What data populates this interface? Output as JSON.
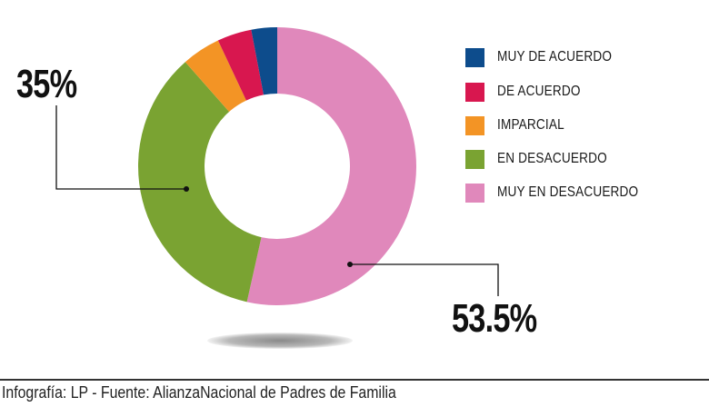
{
  "chart_data": {
    "type": "pie",
    "donut": true,
    "categories": [
      "MUY DE ACUERDO",
      "DE ACUERDO",
      "IMPARCIAL",
      "EN DESACUERDO",
      "MUY EN DESACUERDO"
    ],
    "values": [
      3,
      4,
      4.5,
      35,
      53.5
    ],
    "colors": [
      "#0d4c8c",
      "#d8174f",
      "#f39425",
      "#7aa332",
      "#e088bb"
    ],
    "data_labels": {
      "en_desacuerdo": "35%",
      "muy_en_desacuerdo": "53.5%"
    },
    "legend_position": "right"
  },
  "footer": "Infografía: LP - Fuente: AlianzaNacional de Padres de Familia"
}
